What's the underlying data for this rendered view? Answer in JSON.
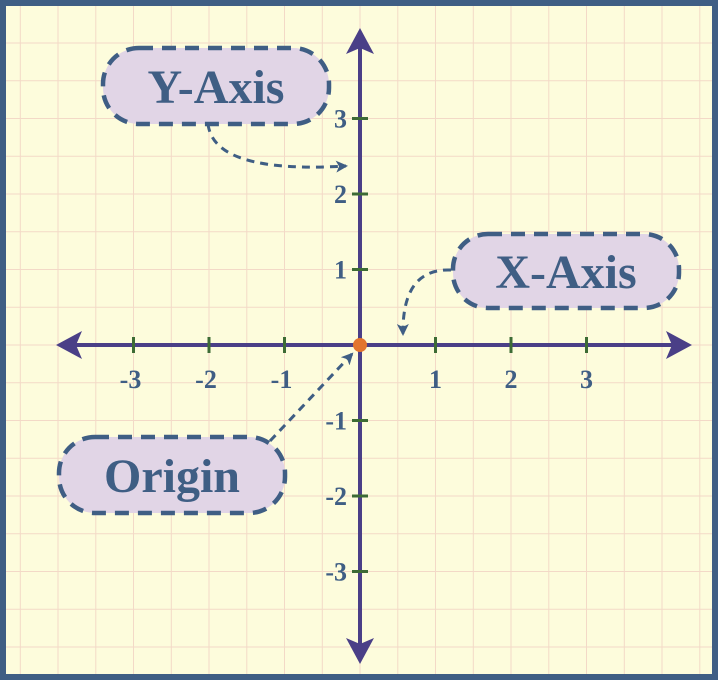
{
  "colors": {
    "background": "#fdfcdc",
    "border": "#3f5e84",
    "grid": "#f3d9c7",
    "axis": "#4a3f87",
    "tick": "#3d6b35",
    "label_text": "#3f5e84",
    "label_fill": "#e1d5e6",
    "origin_dot": "#e2742e"
  },
  "x_axis": {
    "tick_labels": [
      {
        "value": -3,
        "text": "-3"
      },
      {
        "value": -2,
        "text": "-2"
      },
      {
        "value": -1,
        "text": "-1"
      },
      {
        "value": 1,
        "text": "1"
      },
      {
        "value": 2,
        "text": "2"
      },
      {
        "value": 3,
        "text": "3"
      }
    ]
  },
  "y_axis": {
    "tick_labels": [
      {
        "value": 3,
        "text": "3"
      },
      {
        "value": 2,
        "text": "2"
      },
      {
        "value": 1,
        "text": "1"
      },
      {
        "value": -1,
        "text": "-1"
      },
      {
        "value": -2,
        "text": "-2"
      },
      {
        "value": -3,
        "text": "-3"
      }
    ]
  },
  "callouts": {
    "y_axis": "Y-Axis",
    "x_axis": "X-Axis",
    "origin": "Origin"
  }
}
